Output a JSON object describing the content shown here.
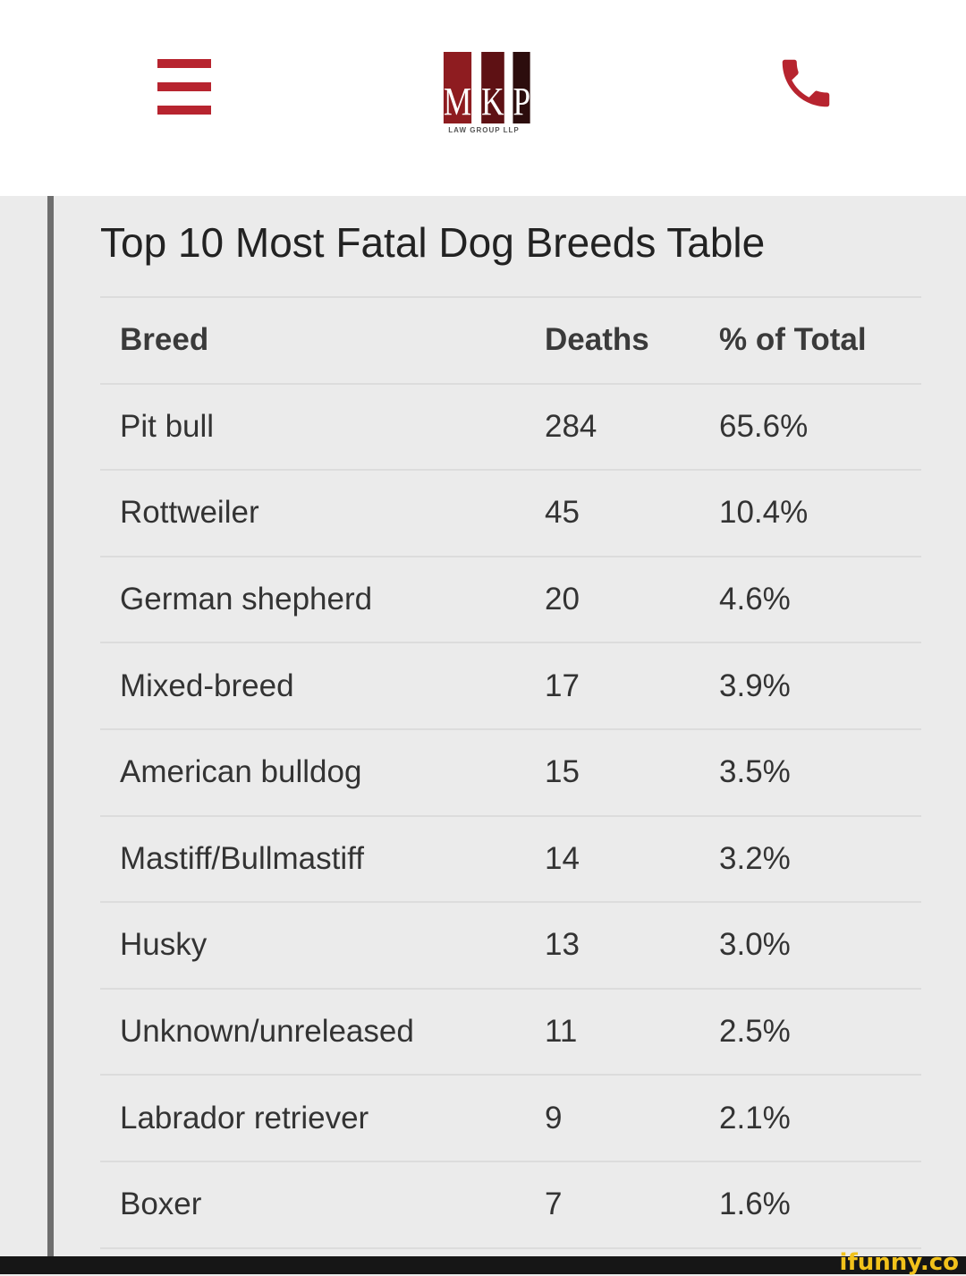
{
  "header": {
    "logo_text": "MKP",
    "logo_letters": [
      "M",
      "K",
      "P"
    ],
    "logo_subtitle": "LAW GROUP LLP",
    "colors": {
      "accent": "#b7242f"
    }
  },
  "title": "Top 10 Most Fatal Dog Breeds Table",
  "table": {
    "columns": [
      "Breed",
      "Deaths",
      "% of Total"
    ],
    "rows": [
      [
        "Pit bull",
        "284",
        "65.6%"
      ],
      [
        "Rottweiler",
        "45",
        "10.4%"
      ],
      [
        "German shepherd",
        "20",
        "4.6%"
      ],
      [
        "Mixed-breed",
        "17",
        "3.9%"
      ],
      [
        "American bulldog",
        "15",
        "3.5%"
      ],
      [
        "Mastiff/Bullmastiff",
        "14",
        "3.2%"
      ],
      [
        "Husky",
        "13",
        "3.0%"
      ],
      [
        "Unknown/unreleased",
        "11",
        "2.5%"
      ],
      [
        "Labrador retriever",
        "9",
        "2.1%"
      ],
      [
        "Boxer",
        "7",
        "1.6%"
      ]
    ]
  },
  "watermark": "ifunny.co"
}
